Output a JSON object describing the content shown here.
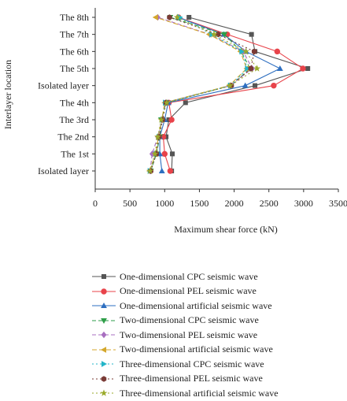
{
  "chart_data": {
    "type": "line",
    "xlabel": "Maximum shear force (kN)",
    "ylabel": "Interlayer location",
    "xlim": [
      0,
      3500
    ],
    "xticks": [
      0,
      500,
      1000,
      1500,
      2000,
      2500,
      3000,
      3500
    ],
    "categories": [
      "Isolated layer",
      "The 1st",
      "The 2nd",
      "The 3rd",
      "The 4th",
      "Isolated layer",
      "The 5th",
      "The 6th",
      "The 7th",
      "The 8th"
    ],
    "grid": false,
    "legend_position": "bottom",
    "series": [
      {
        "name": "One-dimensional CPC seismic wave",
        "color": "#555555",
        "dash": "",
        "marker": "square",
        "values": [
          1100,
          1110,
          1020,
          1060,
          1300,
          2300,
          3060,
          2300,
          2250,
          1350
        ]
      },
      {
        "name": "One-dimensional PEL seismic wave",
        "color": "#e8434a",
        "dash": "",
        "marker": "circle",
        "values": [
          1080,
          1000,
          980,
          1100,
          1060,
          2570,
          2990,
          2620,
          1900,
          1200
        ]
      },
      {
        "name": "One-dimensional artificial seismic wave",
        "color": "#2e6fc0",
        "dash": "",
        "marker": "triangle-up",
        "values": [
          960,
          930,
          930,
          1000,
          1050,
          2160,
          2660,
          2170,
          1850,
          1190
        ]
      },
      {
        "name": "Two-dimensional CPC seismic wave",
        "color": "#2e9e48",
        "dash": "5,3",
        "marker": "triangle-down",
        "values": [
          800,
          880,
          930,
          950,
          1020,
          1950,
          2230,
          2100,
          1860,
          1080
        ]
      },
      {
        "name": "Two-dimensional PEL seismic wave",
        "color": "#a86fc0",
        "dash": "5,3",
        "marker": "diamond",
        "values": [
          790,
          820,
          900,
          960,
          1010,
          1940,
          2260,
          2130,
          1650,
          900
        ]
      },
      {
        "name": "Two-dimensional artificial seismic wave",
        "color": "#d4a72c",
        "dash": "6,3",
        "marker": "triangle-left",
        "values": [
          780,
          870,
          910,
          960,
          1000,
          1930,
          2180,
          2090,
          1640,
          870
        ]
      },
      {
        "name": "Three-dimensional CPC seismic wave",
        "color": "#23b5c8",
        "dash": "2,3",
        "marker": "triangle-right",
        "values": [
          790,
          880,
          920,
          970,
          1010,
          1950,
          2190,
          2110,
          1680,
          1220
        ]
      },
      {
        "name": "Three-dimensional PEL seismic wave",
        "color": "#7a3b36",
        "dash": "2,3",
        "marker": "hexagon",
        "values": [
          800,
          880,
          920,
          970,
          1020,
          1960,
          2240,
          2290,
          1770,
          1070
        ]
      },
      {
        "name": "Three-dimensional artificial seismic wave",
        "color": "#9aaa2a",
        "dash": "2,3",
        "marker": "star",
        "values": [
          790,
          860,
          900,
          950,
          1030,
          1940,
          2330,
          2170,
          1710,
          1180
        ]
      }
    ]
  }
}
